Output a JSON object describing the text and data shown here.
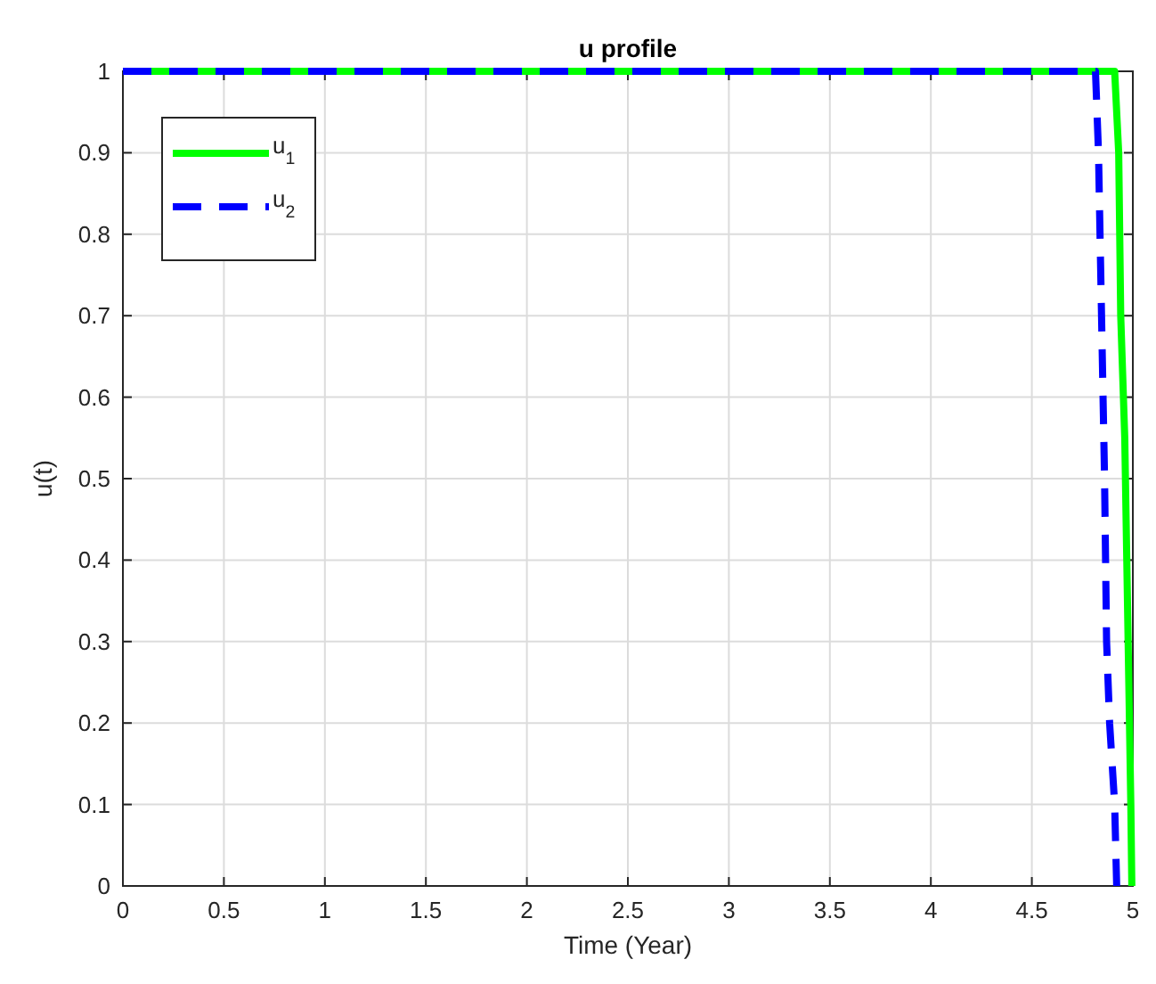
{
  "chart_data": {
    "type": "line",
    "title": "u profile",
    "xlabel": "Time (Year)",
    "ylabel": "u(t)",
    "xlim": [
      0,
      5
    ],
    "ylim": [
      0,
      1
    ],
    "xticks": [
      0,
      0.5,
      1,
      1.5,
      2,
      2.5,
      3,
      3.5,
      4,
      4.5,
      5
    ],
    "yticks": [
      0,
      0.1,
      0.2,
      0.3,
      0.4,
      0.5,
      0.6,
      0.7,
      0.8,
      0.9,
      1
    ],
    "grid": true,
    "legend": "top left",
    "series": [
      {
        "name": "u$_{1}$",
        "color": "#00ff00",
        "line_style": "solid",
        "x": [
          0,
          4.91,
          4.93,
          4.94,
          4.96,
          4.97,
          4.98,
          4.99,
          4.995
        ],
        "values": [
          1,
          1,
          0.9,
          0.7,
          0.55,
          0.4,
          0.25,
          0.1,
          0
        ]
      },
      {
        "name": "u$_{2}$",
        "color": "#0000ff",
        "line_style": "dashed",
        "x": [
          0,
          4.815,
          4.83,
          4.86,
          4.87,
          4.885,
          4.91,
          4.92
        ],
        "values": [
          1,
          1,
          0.9,
          0.5,
          0.3,
          0.2,
          0.1,
          0
        ]
      }
    ]
  }
}
